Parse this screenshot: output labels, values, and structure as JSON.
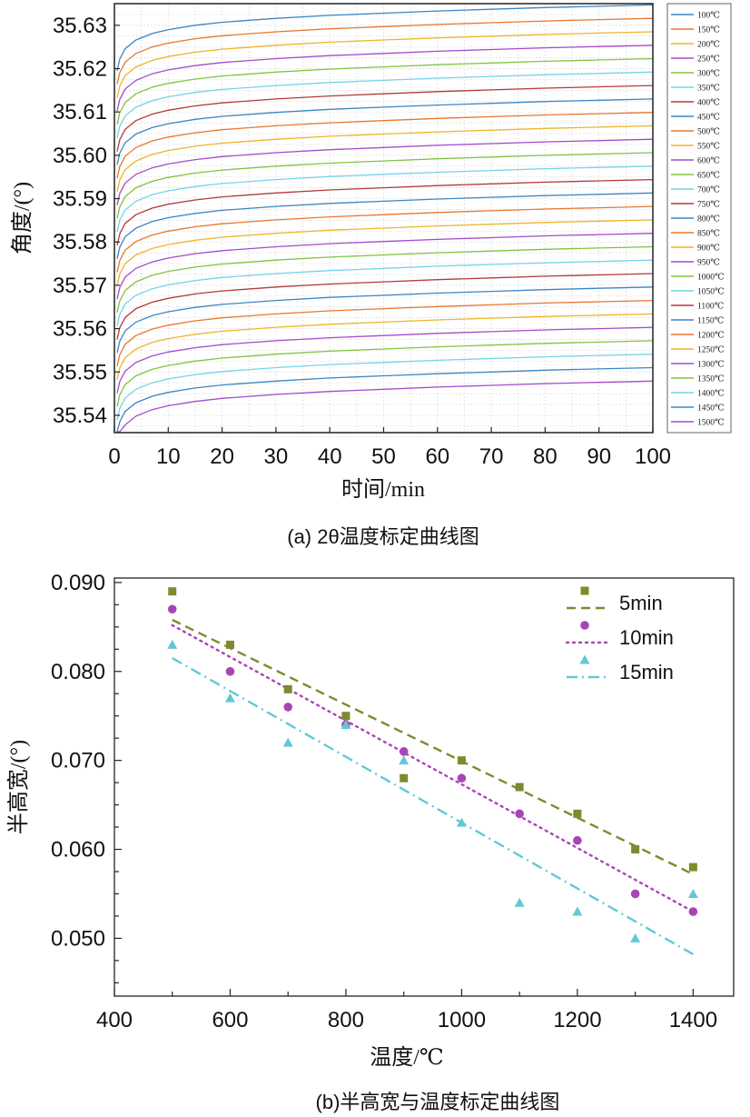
{
  "chart_data": [
    {
      "type": "line",
      "caption": "(a) 2θ温度标定曲线图",
      "xlabel": "时间/min",
      "ylabel": "角度/(°)",
      "xlim": [
        0,
        100
      ],
      "ylim": [
        35.536,
        35.635
      ],
      "x_ticks": [
        "0",
        "10",
        "20",
        "30",
        "40",
        "50",
        "60",
        "70",
        "80",
        "90",
        "100"
      ],
      "y_ticks": [
        "35.54",
        "35.55",
        "35.56",
        "35.57",
        "35.58",
        "35.59",
        "35.60",
        "35.61",
        "35.62",
        "35.63"
      ],
      "grid": "dotted",
      "legend_position": "right",
      "x": [
        0.5,
        1,
        2,
        4,
        7,
        10,
        15,
        20,
        30,
        40,
        50,
        60,
        70,
        80,
        90,
        100
      ],
      "series": [
        {
          "name": "100℃",
          "color": "#3b86c4",
          "values": [
            35.6195,
            35.6222,
            35.6246,
            35.6266,
            35.6281,
            35.629,
            35.63,
            35.6307,
            35.6316,
            35.6323,
            35.6328,
            35.6333,
            35.6337,
            35.6341,
            35.6344,
            35.6347
          ]
        },
        {
          "name": "150℃",
          "color": "#e8772e",
          "values": [
            35.6164,
            35.6191,
            35.6215,
            35.6235,
            35.625,
            35.6259,
            35.6269,
            35.6276,
            35.6285,
            35.6292,
            35.6297,
            35.6302,
            35.6306,
            35.631,
            35.6313,
            35.6316
          ]
        },
        {
          "name": "200℃",
          "color": "#f0b429",
          "values": [
            35.6133,
            35.616,
            35.6184,
            35.6204,
            35.6219,
            35.6228,
            35.6238,
            35.6245,
            35.6254,
            35.6261,
            35.6266,
            35.6271,
            35.6275,
            35.6279,
            35.6282,
            35.6285
          ]
        },
        {
          "name": "250℃",
          "color": "#a64ac9",
          "values": [
            35.6102,
            35.6129,
            35.6153,
            35.6173,
            35.6188,
            35.6197,
            35.6207,
            35.6214,
            35.6223,
            35.623,
            35.6235,
            35.624,
            35.6244,
            35.6248,
            35.6251,
            35.6254
          ]
        },
        {
          "name": "300℃",
          "color": "#82c341",
          "values": [
            35.6071,
            35.6098,
            35.6122,
            35.6142,
            35.6157,
            35.6166,
            35.6176,
            35.6183,
            35.6192,
            35.6199,
            35.6204,
            35.6209,
            35.6213,
            35.6217,
            35.622,
            35.6223
          ]
        },
        {
          "name": "350℃",
          "color": "#74d3ea",
          "values": [
            35.604,
            35.6067,
            35.6091,
            35.6111,
            35.6126,
            35.6135,
            35.6145,
            35.6152,
            35.6161,
            35.6168,
            35.6173,
            35.6178,
            35.6182,
            35.6186,
            35.6189,
            35.6192
          ]
        },
        {
          "name": "400℃",
          "color": "#b33a3a",
          "values": [
            35.6009,
            35.6036,
            35.606,
            35.608,
            35.6095,
            35.6104,
            35.6114,
            35.6121,
            35.613,
            35.6137,
            35.6142,
            35.6147,
            35.6151,
            35.6155,
            35.6158,
            35.6161
          ]
        },
        {
          "name": "450℃",
          "color": "#3b86c4",
          "values": [
            35.5978,
            35.6005,
            35.6029,
            35.6049,
            35.6064,
            35.6073,
            35.6083,
            35.609,
            35.6099,
            35.6106,
            35.6111,
            35.6116,
            35.612,
            35.6124,
            35.6127,
            35.613
          ]
        },
        {
          "name": "500℃",
          "color": "#e8772e",
          "values": [
            35.5947,
            35.5974,
            35.5998,
            35.6018,
            35.6033,
            35.6042,
            35.6052,
            35.6059,
            35.6068,
            35.6075,
            35.608,
            35.6085,
            35.6089,
            35.6093,
            35.6096,
            35.6099
          ]
        },
        {
          "name": "550℃",
          "color": "#f0b429",
          "values": [
            35.5916,
            35.5943,
            35.5967,
            35.5987,
            35.6002,
            35.6011,
            35.6021,
            35.6028,
            35.6037,
            35.6044,
            35.6049,
            35.6054,
            35.6058,
            35.6062,
            35.6065,
            35.6068
          ]
        },
        {
          "name": "600℃",
          "color": "#a64ac9",
          "values": [
            35.5885,
            35.5912,
            35.5936,
            35.5956,
            35.5971,
            35.598,
            35.599,
            35.5997,
            35.6006,
            35.6013,
            35.6018,
            35.6023,
            35.6027,
            35.6031,
            35.6034,
            35.6037
          ]
        },
        {
          "name": "650℃",
          "color": "#82c341",
          "values": [
            35.5854,
            35.5881,
            35.5905,
            35.5925,
            35.594,
            35.5949,
            35.5959,
            35.5966,
            35.5975,
            35.5982,
            35.5987,
            35.5992,
            35.5996,
            35.6,
            35.6003,
            35.6006
          ]
        },
        {
          "name": "700℃",
          "color": "#74d3ea",
          "values": [
            35.5823,
            35.585,
            35.5874,
            35.5894,
            35.5909,
            35.5918,
            35.5928,
            35.5935,
            35.5944,
            35.5951,
            35.5956,
            35.5961,
            35.5965,
            35.5969,
            35.5972,
            35.5975
          ]
        },
        {
          "name": "750℃",
          "color": "#b33a3a",
          "values": [
            35.5792,
            35.5819,
            35.5843,
            35.5863,
            35.5878,
            35.5887,
            35.5897,
            35.5904,
            35.5913,
            35.592,
            35.5925,
            35.593,
            35.5934,
            35.5938,
            35.5941,
            35.5944
          ]
        },
        {
          "name": "800℃",
          "color": "#3b86c4",
          "values": [
            35.5761,
            35.5788,
            35.5812,
            35.5832,
            35.5847,
            35.5856,
            35.5866,
            35.5873,
            35.5882,
            35.5889,
            35.5894,
            35.5899,
            35.5903,
            35.5907,
            35.591,
            35.5913
          ]
        },
        {
          "name": "850℃",
          "color": "#e8772e",
          "values": [
            35.573,
            35.5757,
            35.5781,
            35.5801,
            35.5816,
            35.5825,
            35.5835,
            35.5842,
            35.5851,
            35.5858,
            35.5863,
            35.5868,
            35.5872,
            35.5876,
            35.5879,
            35.5882
          ]
        },
        {
          "name": "900℃",
          "color": "#f0b429",
          "values": [
            35.5699,
            35.5726,
            35.575,
            35.577,
            35.5785,
            35.5794,
            35.5804,
            35.5811,
            35.582,
            35.5827,
            35.5832,
            35.5837,
            35.5841,
            35.5845,
            35.5848,
            35.5851
          ]
        },
        {
          "name": "950℃",
          "color": "#a64ac9",
          "values": [
            35.5668,
            35.5695,
            35.5719,
            35.5739,
            35.5754,
            35.5763,
            35.5773,
            35.578,
            35.5789,
            35.5796,
            35.5801,
            35.5806,
            35.581,
            35.5814,
            35.5817,
            35.582
          ]
        },
        {
          "name": "1000℃",
          "color": "#82c341",
          "values": [
            35.5637,
            35.5664,
            35.5688,
            35.5708,
            35.5723,
            35.5732,
            35.5742,
            35.5749,
            35.5758,
            35.5765,
            35.577,
            35.5775,
            35.5779,
            35.5783,
            35.5786,
            35.5789
          ]
        },
        {
          "name": "1050℃",
          "color": "#74d3ea",
          "values": [
            35.5606,
            35.5633,
            35.5657,
            35.5677,
            35.5692,
            35.5701,
            35.5711,
            35.5718,
            35.5727,
            35.5734,
            35.5739,
            35.5744,
            35.5748,
            35.5752,
            35.5755,
            35.5758
          ]
        },
        {
          "name": "1100℃",
          "color": "#b33a3a",
          "values": [
            35.5575,
            35.5602,
            35.5626,
            35.5646,
            35.5661,
            35.567,
            35.568,
            35.5687,
            35.5696,
            35.5703,
            35.5708,
            35.5713,
            35.5717,
            35.5721,
            35.5724,
            35.5727
          ]
        },
        {
          "name": "1150℃",
          "color": "#3b86c4",
          "values": [
            35.5544,
            35.5571,
            35.5595,
            35.5615,
            35.563,
            35.5639,
            35.5649,
            35.5656,
            35.5665,
            35.5672,
            35.5677,
            35.5682,
            35.5686,
            35.569,
            35.5693,
            35.5696
          ]
        },
        {
          "name": "1200℃",
          "color": "#e8772e",
          "values": [
            35.5513,
            35.554,
            35.5564,
            35.5584,
            35.5599,
            35.5608,
            35.5618,
            35.5625,
            35.5634,
            35.5641,
            35.5646,
            35.5651,
            35.5655,
            35.5659,
            35.5662,
            35.5665
          ]
        },
        {
          "name": "1250℃",
          "color": "#f0b429",
          "values": [
            35.5482,
            35.5509,
            35.5533,
            35.5553,
            35.5568,
            35.5577,
            35.5587,
            35.5594,
            35.5603,
            35.561,
            35.5615,
            35.562,
            35.5624,
            35.5628,
            35.5631,
            35.5634
          ]
        },
        {
          "name": "1300℃",
          "color": "#a64ac9",
          "values": [
            35.5451,
            35.5478,
            35.5502,
            35.5522,
            35.5537,
            35.5546,
            35.5556,
            35.5563,
            35.5572,
            35.5579,
            35.5584,
            35.5589,
            35.5593,
            35.5597,
            35.56,
            35.5603
          ]
        },
        {
          "name": "1350℃",
          "color": "#82c341",
          "values": [
            35.542,
            35.5447,
            35.5471,
            35.5491,
            35.5506,
            35.5515,
            35.5525,
            35.5532,
            35.5541,
            35.5548,
            35.5553,
            35.5558,
            35.5562,
            35.5566,
            35.5569,
            35.5572
          ]
        },
        {
          "name": "1400℃",
          "color": "#74d3ea",
          "values": [
            35.5389,
            35.5416,
            35.544,
            35.546,
            35.5475,
            35.5484,
            35.5494,
            35.5501,
            35.551,
            35.5517,
            35.5522,
            35.5527,
            35.5531,
            35.5535,
            35.5538,
            35.5541
          ]
        },
        {
          "name": "1450℃",
          "color": "#3b86c4",
          "values": [
            35.5358,
            35.5385,
            35.5409,
            35.5429,
            35.5444,
            35.5453,
            35.5463,
            35.547,
            35.5479,
            35.5486,
            35.5491,
            35.5496,
            35.55,
            35.5504,
            35.5507,
            35.551
          ]
        },
        {
          "name": "1500℃",
          "color": "#a64ac9",
          "values": [
            35.5327,
            35.5354,
            35.5378,
            35.5398,
            35.5413,
            35.5422,
            35.5432,
            35.5439,
            35.5448,
            35.5455,
            35.546,
            35.5465,
            35.5469,
            35.5473,
            35.5476,
            35.5479
          ]
        }
      ]
    },
    {
      "type": "scatter",
      "caption": "(b)半高宽与温度标定曲线图",
      "xlabel": "温度/℃",
      "ylabel": "半高宽/(°)",
      "xlim": [
        400,
        1470
      ],
      "ylim": [
        0.0435,
        0.0905
      ],
      "x_ticks": [
        "400",
        "600",
        "800",
        "1000",
        "1200",
        "1400"
      ],
      "y_ticks": [
        "0.050",
        "0.060",
        "0.070",
        "0.080",
        "0.090"
      ],
      "legend_position": "top-right",
      "x": [
        500,
        600,
        700,
        800,
        900,
        1000,
        1100,
        1200,
        1300,
        1400
      ],
      "series": [
        {
          "name": "5min",
          "color": "#7f8a2e",
          "marker": "square",
          "line": "dashed",
          "values": [
            0.089,
            0.083,
            0.078,
            0.075,
            0.068,
            0.07,
            0.067,
            0.064,
            0.06,
            0.058
          ],
          "fit": [
            0.0858,
            0.0572
          ]
        },
        {
          "name": "10min",
          "color": "#a845b5",
          "marker": "circle",
          "line": "dotted",
          "values": [
            0.087,
            0.08,
            0.076,
            0.074,
            0.071,
            0.068,
            0.064,
            0.061,
            0.055,
            0.053
          ],
          "fit": [
            0.0852,
            0.053
          ]
        },
        {
          "name": "15min",
          "color": "#62c8d6",
          "marker": "triangle",
          "line": "dashdot",
          "values": [
            0.083,
            0.077,
            0.072,
            0.074,
            0.07,
            0.063,
            0.054,
            0.053,
            0.05,
            0.055
          ],
          "fit": [
            0.0815,
            0.0482
          ]
        }
      ]
    }
  ]
}
